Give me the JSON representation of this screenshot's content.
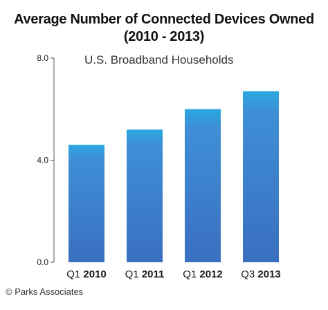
{
  "chart_data": {
    "type": "bar",
    "title": "Average Number of Connected Devices Owned",
    "subtitle": "(2010 - 2013)",
    "annotation": "U.S. Broadband Households",
    "categories": [
      {
        "prefix": "Q1",
        "year": "2010"
      },
      {
        "prefix": "Q1",
        "year": "2011"
      },
      {
        "prefix": "Q1",
        "year": "2012"
      },
      {
        "prefix": "Q3",
        "year": "2013"
      }
    ],
    "values": [
      4.6,
      5.2,
      6.0,
      6.7
    ],
    "ylim": [
      0,
      8
    ],
    "yticks": [
      "0.0",
      "4.0",
      "8.0"
    ],
    "ytick_values": [
      0,
      4,
      8
    ],
    "grid": false,
    "colors": {
      "bar_top": "#2aa8e0",
      "bar_bottom": "#3a6fbf",
      "axis": "#555555"
    }
  },
  "footer": "© Parks Associates"
}
